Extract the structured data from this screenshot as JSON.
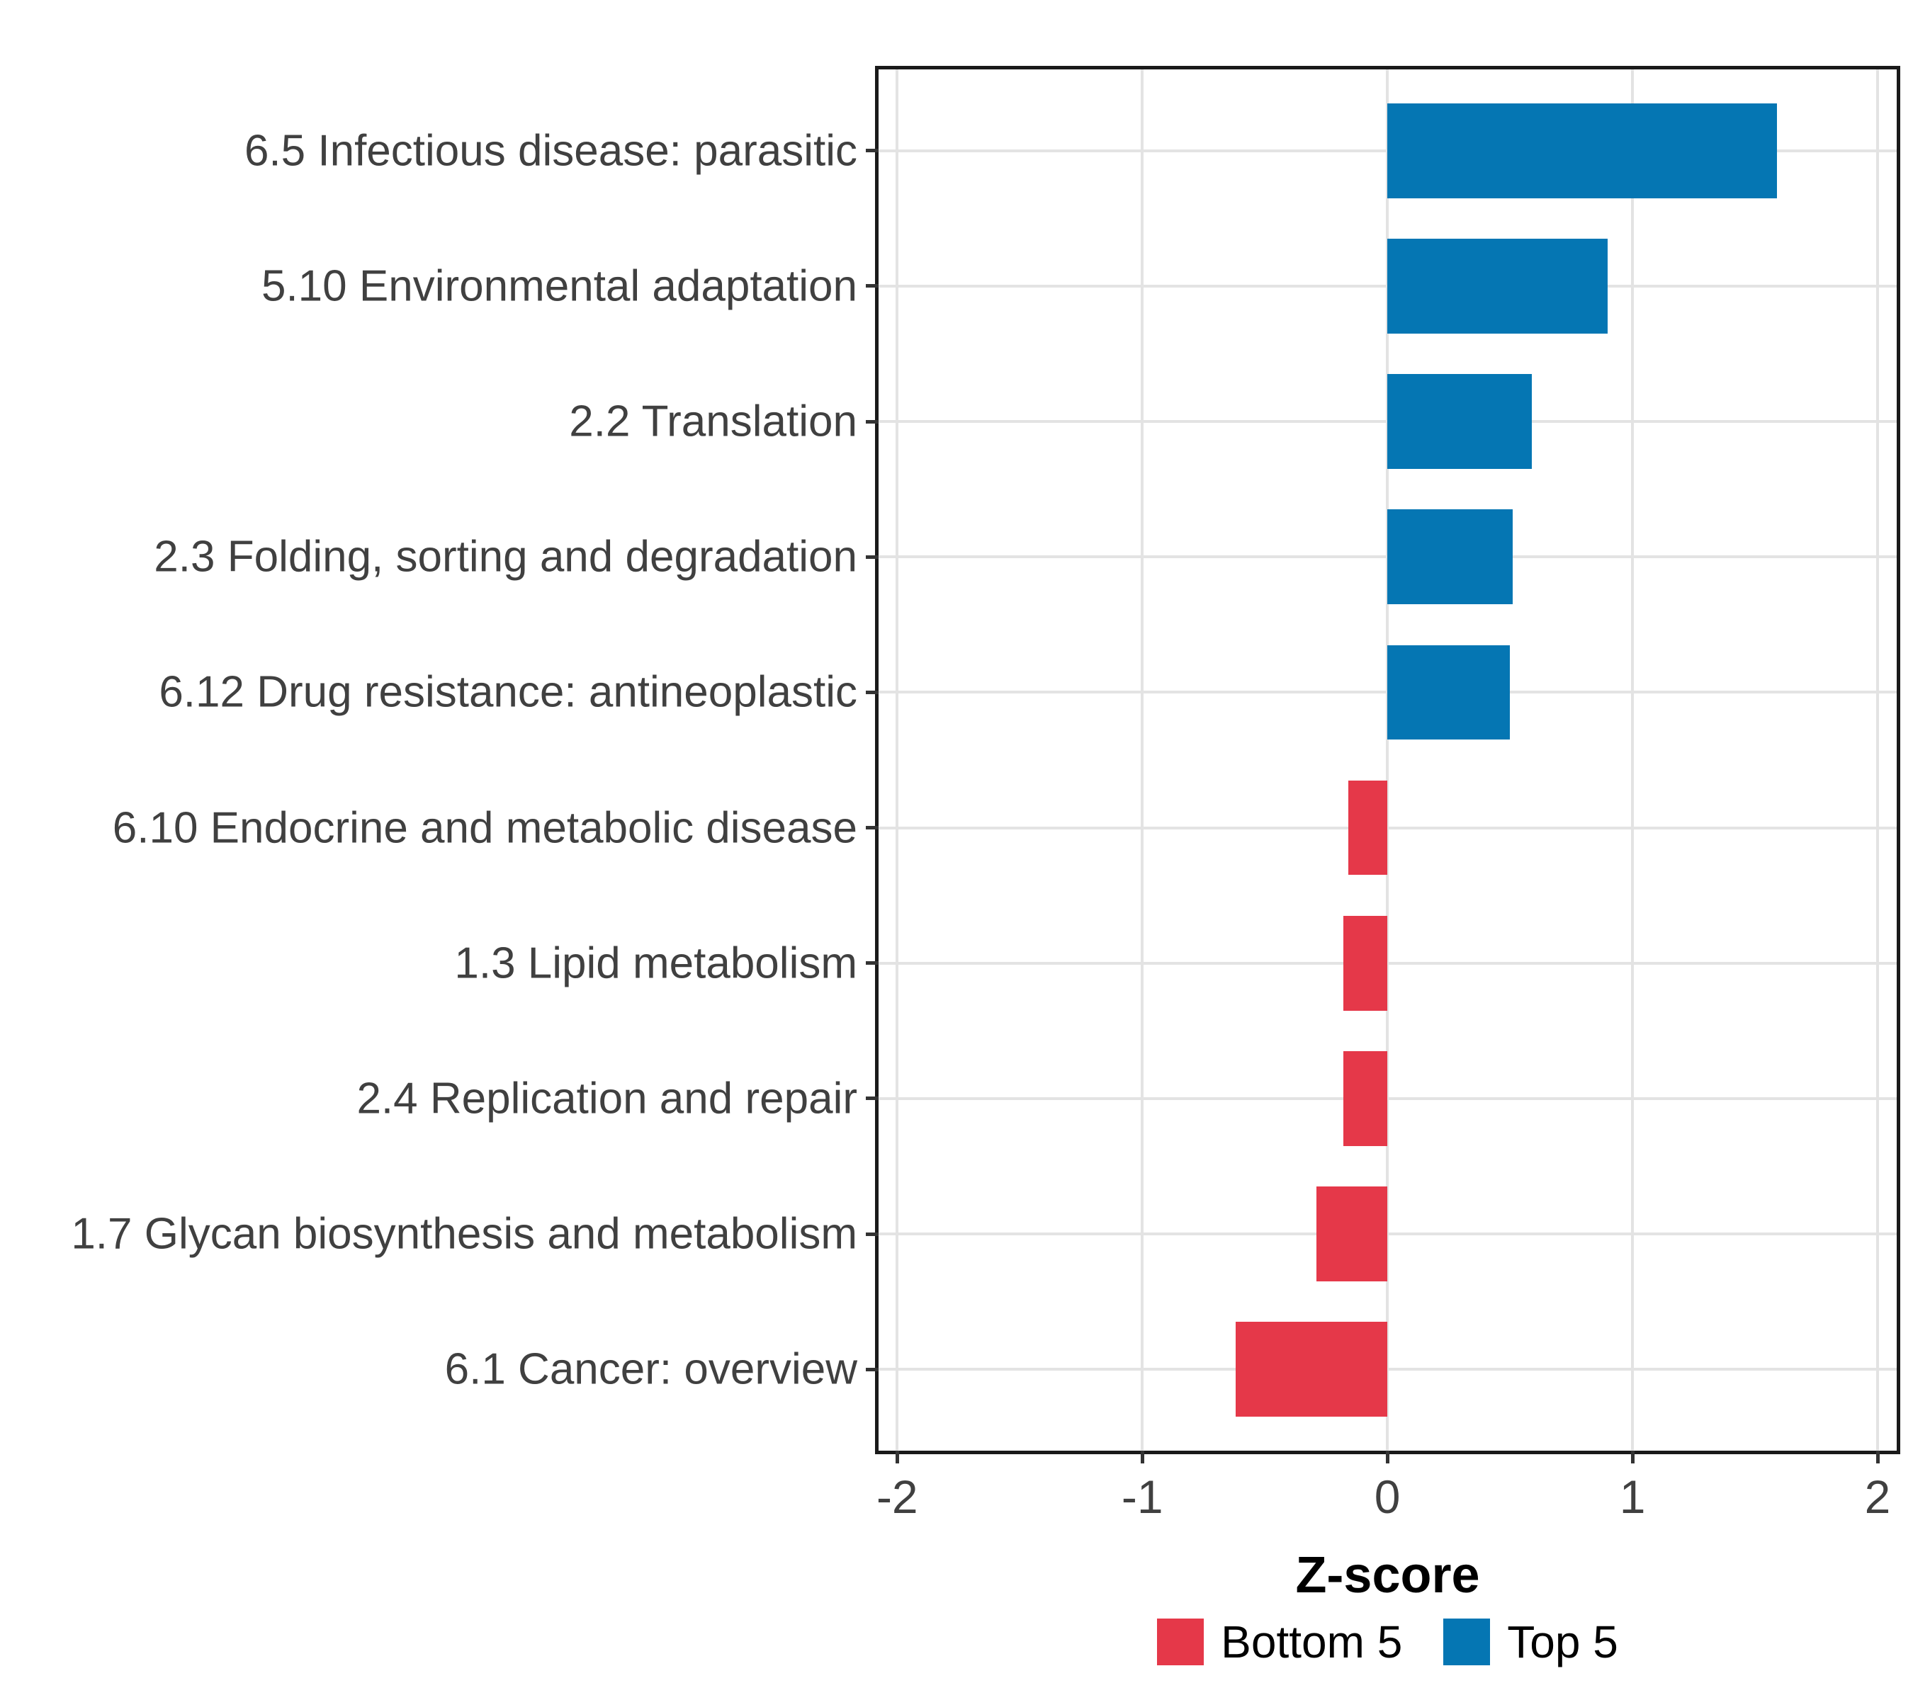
{
  "figure": {
    "background": "#ffffff",
    "text_color": "#404040",
    "grid_color": "#e3e3e3",
    "border_color": "#1a1a1a"
  },
  "chart_data": {
    "type": "bar",
    "orientation": "horizontal",
    "title": "",
    "xlabel": "Z-score",
    "ylabel": "",
    "categories": [
      "6.5 Infectious disease: parasitic",
      "5.10 Environmental adaptation",
      "2.2 Translation",
      "2.3 Folding, sorting and degradation",
      "6.12 Drug resistance: antineoplastic",
      "6.10 Endocrine and metabolic disease",
      "1.3 Lipid metabolism",
      "2.4 Replication and repair",
      "1.7 Glycan biosynthesis and metabolism",
      "6.1 Cancer: overview"
    ],
    "values": [
      1.59,
      0.9,
      0.59,
      0.51,
      0.5,
      -0.16,
      -0.18,
      -0.18,
      -0.29,
      -0.62
    ],
    "groups": [
      "Top 5",
      "Top 5",
      "Top 5",
      "Top 5",
      "Top 5",
      "Bottom 5",
      "Bottom 5",
      "Bottom 5",
      "Bottom 5",
      "Bottom 5"
    ],
    "group_colors": {
      "Top 5": "#0576B3",
      "Bottom 5": "#E53849"
    },
    "x_ticks": [
      -2,
      -1,
      0,
      1,
      2
    ],
    "x_tick_labels": [
      "-2",
      "-1",
      "0",
      "1",
      "2"
    ],
    "xlim": [
      -2.076,
      2.078
    ],
    "grid": "major-only",
    "legend": {
      "position": "bottom",
      "entries": [
        {
          "label": "Bottom 5",
          "color": "#E53849"
        },
        {
          "label": "Top 5",
          "color": "#0576B3"
        }
      ]
    }
  }
}
